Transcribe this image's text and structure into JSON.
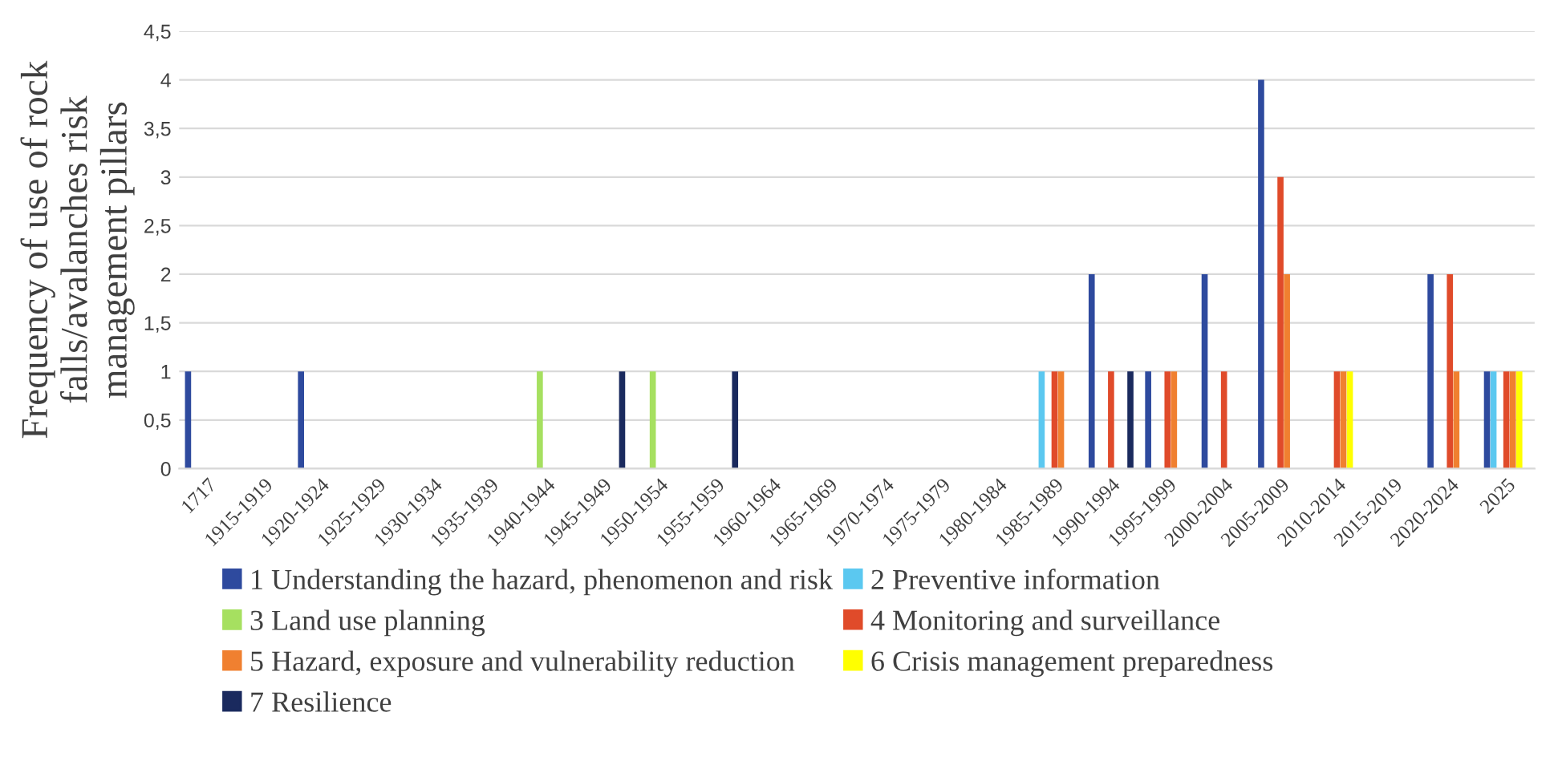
{
  "chart_data": {
    "type": "bar",
    "ylabel": "Frequency of use of rock falls/avalanches risk management pillars",
    "categories": [
      "1717",
      "1915-1919",
      "1920-1924",
      "1925-1929",
      "1930-1934",
      "1935-1939",
      "1940-1944",
      "1945-1949",
      "1950-1954",
      "1955-1959",
      "1960-1964",
      "1965-1969",
      "1970-1974",
      "1975-1979",
      "1980-1984",
      "1985-1989",
      "1990-1994",
      "1995-1999",
      "2000-2004",
      "2005-2009",
      "2010-2014",
      "2015-2019",
      "2020-2024",
      "2025"
    ],
    "series": [
      {
        "name": "1 Understanding the hazard, phenomenon and risk",
        "color": "#2e4a9e",
        "values": [
          1,
          0,
          1,
          0,
          0,
          0,
          0,
          0,
          0,
          0,
          0,
          0,
          0,
          0,
          0,
          0,
          2,
          1,
          2,
          4,
          0,
          0,
          2,
          1
        ]
      },
      {
        "name": "2 Preventive information",
        "color": "#5bc8f0",
        "values": [
          0,
          0,
          0,
          0,
          0,
          0,
          0,
          0,
          0,
          0,
          0,
          0,
          0,
          0,
          0,
          1,
          0,
          0,
          0,
          0,
          0,
          0,
          0,
          1
        ]
      },
      {
        "name": "3 Land use planning",
        "color": "#a6e060",
        "values": [
          0,
          0,
          0,
          0,
          0,
          0,
          1,
          0,
          1,
          0,
          0,
          0,
          0,
          0,
          0,
          0,
          0,
          0,
          0,
          0,
          0,
          0,
          0,
          0
        ]
      },
      {
        "name": "4 Monitoring and surveillance",
        "color": "#e04b2a",
        "values": [
          0,
          0,
          0,
          0,
          0,
          0,
          0,
          0,
          0,
          0,
          0,
          0,
          0,
          0,
          0,
          1,
          1,
          1,
          1,
          3,
          1,
          0,
          2,
          1
        ]
      },
      {
        "name": "5 Hazard, exposure and vulnerability reduction",
        "color": "#f08030",
        "values": [
          0,
          0,
          0,
          0,
          0,
          0,
          0,
          0,
          0,
          0,
          0,
          0,
          0,
          0,
          0,
          1,
          0,
          1,
          0,
          2,
          1,
          0,
          1,
          1
        ]
      },
      {
        "name": "6 Crisis management preparedness",
        "color": "#ffff00",
        "values": [
          0,
          0,
          0,
          0,
          0,
          0,
          0,
          0,
          0,
          0,
          0,
          0,
          0,
          0,
          0,
          0,
          0,
          0,
          0,
          0,
          1,
          0,
          0,
          1
        ]
      },
      {
        "name": "7 Resilience",
        "color": "#1a2a5e",
        "values": [
          0,
          0,
          0,
          0,
          0,
          0,
          0,
          1,
          0,
          1,
          0,
          0,
          0,
          0,
          0,
          0,
          1,
          0,
          0,
          0,
          0,
          0,
          0,
          0
        ]
      }
    ],
    "ylim": [
      0,
      4.5
    ],
    "yticks": [
      0,
      {
        "value": 0.5,
        "label": "0,5"
      },
      1,
      {
        "value": 1.5,
        "label": "1,5"
      },
      2,
      {
        "value": 2.5,
        "label": "2,5"
      },
      3,
      {
        "value": 3.5,
        "label": "3,5"
      },
      4,
      {
        "value": 4.5,
        "label": "4,5"
      }
    ],
    "grid": "y",
    "legend": "bottom"
  }
}
